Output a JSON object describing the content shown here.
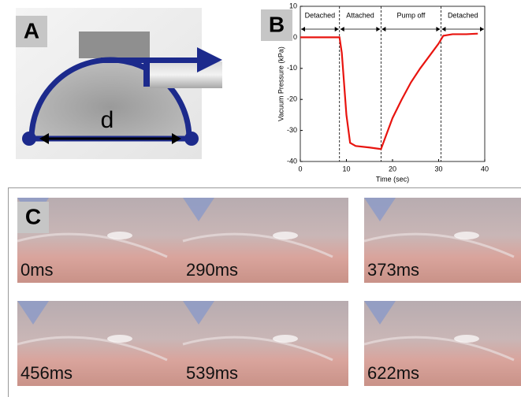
{
  "panel_labels": [
    "A",
    "B",
    "C"
  ],
  "diagram": {
    "dimension_label": "d"
  },
  "chart_data": {
    "type": "line",
    "xlabel": "Time (sec)",
    "ylabel": "Vacuum Pressure (kPa)",
    "x": [
      0,
      8.5,
      9,
      10,
      10.8,
      12,
      15,
      17.5,
      18,
      19,
      20,
      22,
      24,
      26,
      28,
      30,
      31,
      33,
      36,
      38.5
    ],
    "values": [
      0,
      0,
      -5,
      -25,
      -34,
      -35,
      -35.5,
      -36,
      -34,
      -30,
      -26,
      -20,
      -14.5,
      -10,
      -6,
      -2,
      0.5,
      1,
      1,
      1.2
    ],
    "color": "#e8140f",
    "xlim": [
      0,
      40
    ],
    "xticks": [
      0,
      10,
      20,
      30,
      40
    ],
    "ylim": [
      -40,
      10
    ],
    "yticks": [
      -40,
      -30,
      -20,
      -10,
      0,
      10
    ],
    "phase_boundaries": [
      8.5,
      17.5,
      30.5
    ],
    "phase_labels": [
      "Detached",
      "Attached",
      "Pump off",
      "Detached"
    ]
  },
  "frames": [
    {
      "label": "0ms"
    },
    {
      "label": "290ms"
    },
    {
      "label": "373ms"
    },
    {
      "label": "456ms"
    },
    {
      "label": "539ms"
    },
    {
      "label": "622ms"
    }
  ]
}
